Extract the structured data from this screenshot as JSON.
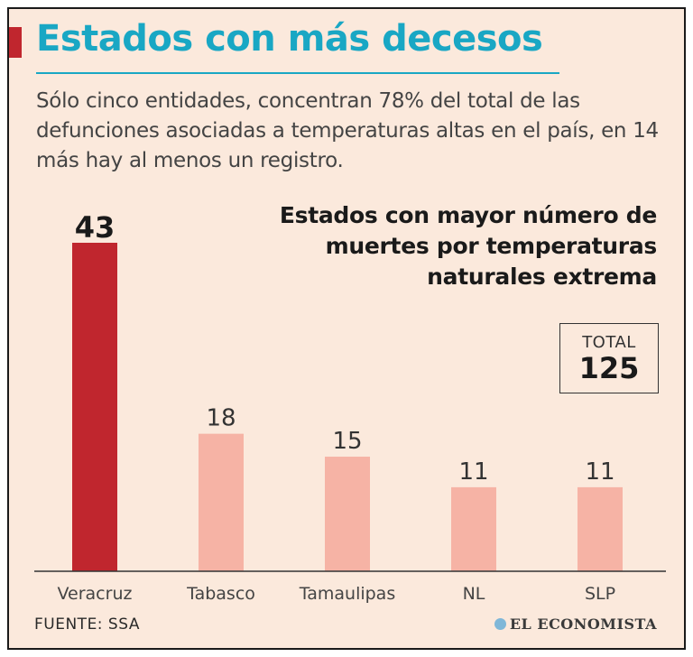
{
  "header": {
    "title": "Estados con más decesos",
    "subtitle": "Sólo cinco entidades, concentran 78% del total de las defunciones asociadas a temperaturas altas en el país, en 14 más hay al menos un registro."
  },
  "total": {
    "label": "TOTAL",
    "value": "125"
  },
  "footer": {
    "source": "FUENTE: SSA",
    "brand": "EL ECONOMISTA"
  },
  "colors": {
    "title": "#19a7c4",
    "highlight_bar": "#c0262e",
    "bar": "#f6b3a5",
    "background": "#fbe9dc"
  },
  "chart_data": {
    "type": "bar",
    "title": "Estados con mayor número de muertes por temperaturas naturales extrema",
    "categories": [
      "Veracruz",
      "Tabasco",
      "Tamaulipas",
      "NL",
      "SLP"
    ],
    "values": [
      43,
      18,
      15,
      11,
      11
    ],
    "highlight_index": 0,
    "xlabel": "",
    "ylabel": "",
    "ylim": [
      0,
      43
    ]
  }
}
